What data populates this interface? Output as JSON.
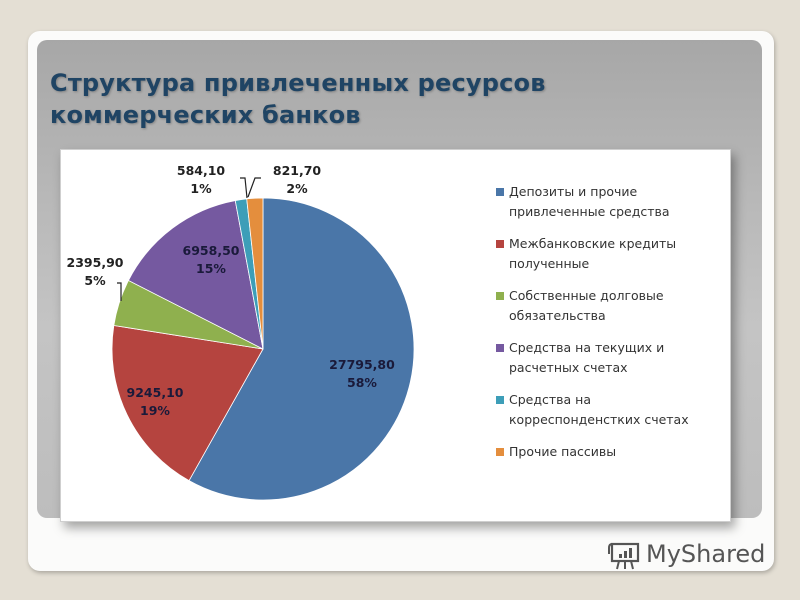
{
  "slide": {
    "title_line1": "Структура привлеченных ресурсов",
    "title_line2": "коммерческих банков"
  },
  "watermark": {
    "text": "MyShared",
    "icon": "presentation-board-icon"
  },
  "chart_data": {
    "type": "pie",
    "title": "Структура привлеченных ресурсов коммерческих банков",
    "categories": [
      "Депозиты и прочие привлеченные средства",
      "Межбанковские кредиты полученные",
      "Собственные долговые обязательства",
      "Средства на текущих и расчетных счетах",
      "Средства на корреспонденстких счетах",
      "Прочие пассивы"
    ],
    "values": [
      27795.8,
      9245.1,
      2395.9,
      6958.5,
      584.1,
      821.7
    ],
    "value_labels": [
      "27795,80",
      "9245,10",
      "2395,90",
      "6958,50",
      "584,10",
      "821,70"
    ],
    "percent_labels": [
      "58%",
      "19%",
      "5%",
      "15%",
      "1%",
      "2%"
    ],
    "colors": [
      "#4a76a8",
      "#b5443f",
      "#8fb04e",
      "#7559a0",
      "#3d9eb8",
      "#e48e3d"
    ],
    "legend_position": "right",
    "start_angle": "12 o'clock, clockwise"
  },
  "legend": [
    {
      "line1": "Депозиты и прочие",
      "line2": "привлеченные средства"
    },
    {
      "line1": "Межбанковские кредиты",
      "line2": "полученные"
    },
    {
      "line1": "Собственные долговые",
      "line2": "обязательства"
    },
    {
      "line1": "Средства на текущих и",
      "line2": "расчетных счетах"
    },
    {
      "line1": "Средства на",
      "line2": "корреспонденстких счетах"
    },
    {
      "line1": "Прочие пассивы",
      "line2": ""
    }
  ]
}
